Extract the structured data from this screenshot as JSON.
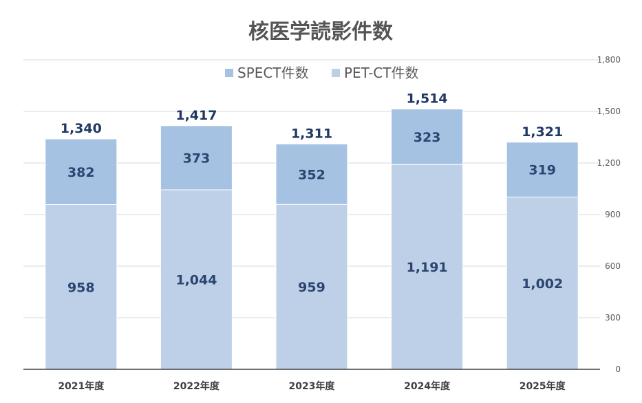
{
  "chart_data": {
    "type": "bar",
    "stacked": true,
    "title": "核医学読影件数",
    "categories": [
      "2021年度",
      "2022年度",
      "2023年度",
      "2024年度",
      "2025年度"
    ],
    "series": [
      {
        "name": "PET-CT件数",
        "values": [
          958,
          1044,
          959,
          1191,
          1002
        ],
        "labels": [
          "958",
          "1,044",
          "959",
          "1,191",
          "1,002"
        ],
        "color": "#bdd0e8"
      },
      {
        "name": "SPECT件数",
        "values": [
          382,
          373,
          352,
          323,
          319
        ],
        "labels": [
          "382",
          "373",
          "352",
          "323",
          "319"
        ],
        "color": "#a6c2e3"
      }
    ],
    "totals": [
      1340,
      1417,
      1311,
      1514,
      1321
    ],
    "total_labels": [
      "1,340",
      "1,417",
      "1,311",
      "1,514",
      "1,321"
    ],
    "legend": [
      "SPECT件数",
      "PET-CT件数"
    ],
    "legend_position": "top",
    "y_axis_position": "right",
    "ylim": [
      0,
      1800
    ],
    "yticks": [
      0,
      300,
      600,
      900,
      1200,
      1500,
      1800
    ],
    "ytick_labels": [
      "0",
      "300",
      "600",
      "900",
      "1,200",
      "1,500",
      "1,800"
    ],
    "grid": true,
    "gridline_color": "#d9d9d9",
    "axis_color": "#404040"
  }
}
